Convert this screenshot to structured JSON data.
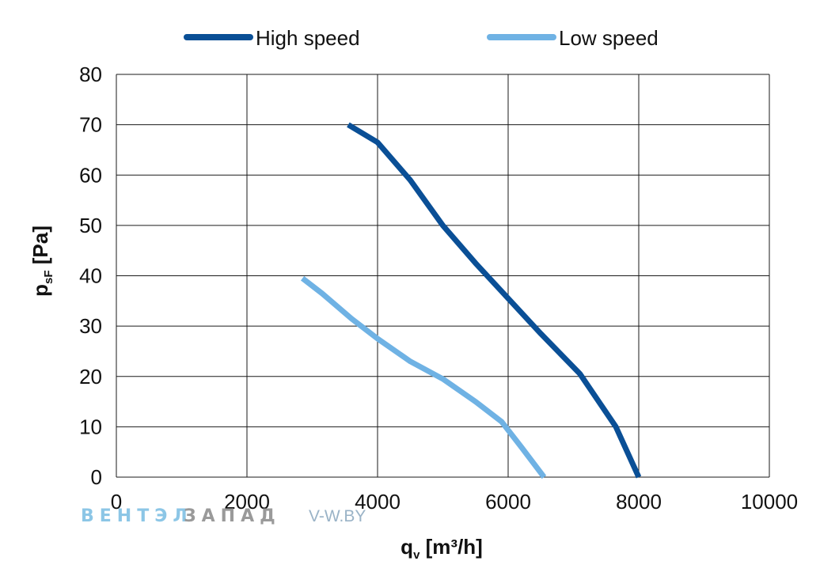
{
  "chart_data": {
    "type": "line",
    "xlabel_main": "q",
    "xlabel_sub": "v",
    "xlabel_unit": " [m³/h]",
    "ylabel_main": "p",
    "ylabel_sub": "sF",
    "ylabel_unit": " [Pa]",
    "xlim": [
      0,
      10000
    ],
    "ylim": [
      0,
      80
    ],
    "x_ticks": [
      0,
      2000,
      4000,
      6000,
      8000,
      10000
    ],
    "y_ticks": [
      0,
      10,
      20,
      30,
      40,
      50,
      60,
      70,
      80
    ],
    "grid": true,
    "legend_position": "top",
    "series": [
      {
        "name": "High speed",
        "color": "#0a4f96",
        "points": [
          [
            3550,
            70
          ],
          [
            4000,
            66.5
          ],
          [
            4500,
            59
          ],
          [
            5000,
            50
          ],
          [
            5500,
            42.5
          ],
          [
            6000,
            35.5
          ],
          [
            6500,
            28.5
          ],
          [
            7100,
            20.5
          ],
          [
            7650,
            10
          ],
          [
            8000,
            0
          ]
        ]
      },
      {
        "name": "Low speed",
        "color": "#6fb2e4",
        "points": [
          [
            2850,
            39.5
          ],
          [
            3150,
            36.5
          ],
          [
            3600,
            31.5
          ],
          [
            4000,
            27.5
          ],
          [
            4500,
            23
          ],
          [
            5000,
            19.5
          ],
          [
            5500,
            15
          ],
          [
            5900,
            11
          ],
          [
            6200,
            6
          ],
          [
            6550,
            0
          ]
        ]
      }
    ]
  },
  "watermark": {
    "part_a": "ВЕНТЭЛ",
    "part_b": "ЗАПАД",
    "url": "V-W.BY"
  }
}
